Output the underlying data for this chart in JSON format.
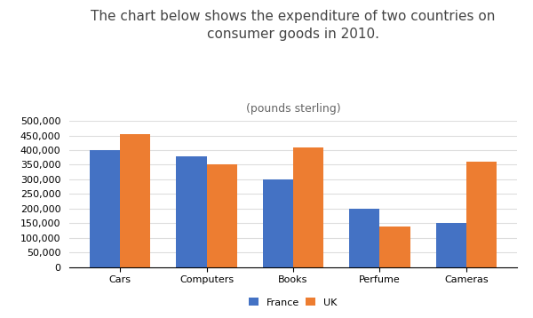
{
  "title_line1": "The chart below shows the expenditure of two countries on",
  "title_line2": "consumer goods in 2010.",
  "subtitle": "(pounds sterling)",
  "categories": [
    "Cars",
    "Computers",
    "Books",
    "Perfume",
    "Cameras"
  ],
  "france_values": [
    400000,
    380000,
    300000,
    200000,
    150000
  ],
  "uk_values": [
    455000,
    350000,
    408000,
    140000,
    360000
  ],
  "france_color": "#4472C4",
  "uk_color": "#ED7D31",
  "ylim": [
    0,
    500000
  ],
  "yticks": [
    0,
    50000,
    100000,
    150000,
    200000,
    250000,
    300000,
    350000,
    400000,
    450000,
    500000
  ],
  "legend_labels": [
    "France",
    "UK"
  ],
  "background_color": "#ffffff",
  "bar_width": 0.35,
  "title_fontsize": 11,
  "subtitle_fontsize": 9,
  "tick_fontsize": 8,
  "legend_fontsize": 8
}
